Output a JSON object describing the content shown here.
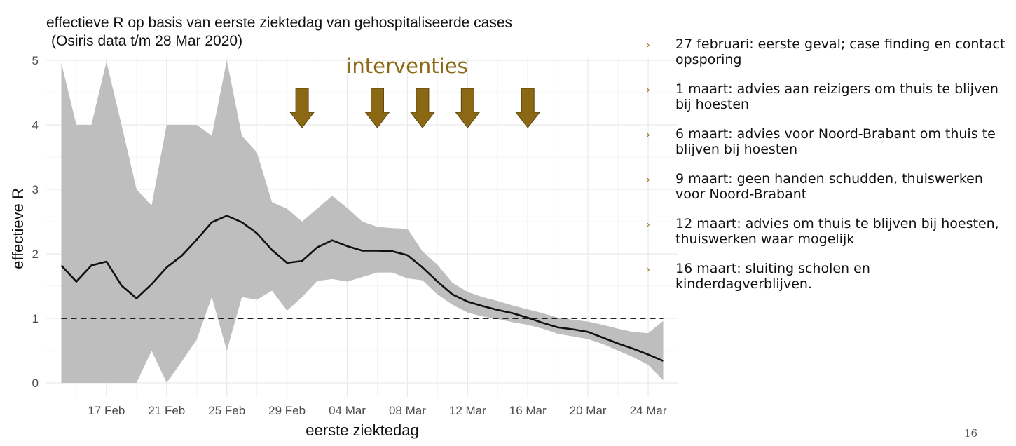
{
  "colors": {
    "band": "#bebebe",
    "line": "#111111",
    "reference": "#222222",
    "arrow": "#8b6914",
    "interventions_text": "#8b6914",
    "grid": "#ebebeb",
    "bullet_marker": "#9a7a16"
  },
  "chart_data": {
    "type": "area",
    "title": "effectieve R op basis van eerste ziektedag van gehospitaliseerde cases",
    "subtitle": "(Osiris data t/m 28 Mar 2020)",
    "xlabel": "eerste ziektedag",
    "ylabel": "effectieve R",
    "xlim": [
      "2020-02-13",
      "2020-03-26"
    ],
    "ylim": [
      0,
      5
    ],
    "x_ticks": [
      {
        "date": "2020-02-17",
        "label": "17 Feb"
      },
      {
        "date": "2020-02-21",
        "label": "21 Feb"
      },
      {
        "date": "2020-02-25",
        "label": "25 Feb"
      },
      {
        "date": "2020-02-29",
        "label": "29 Feb"
      },
      {
        "date": "2020-03-04",
        "label": "04 Mar"
      },
      {
        "date": "2020-03-08",
        "label": "08 Mar"
      },
      {
        "date": "2020-03-12",
        "label": "12 Mar"
      },
      {
        "date": "2020-03-16",
        "label": "16 Mar"
      },
      {
        "date": "2020-03-20",
        "label": "20 Mar"
      },
      {
        "date": "2020-03-24",
        "label": "24 Mar"
      }
    ],
    "y_ticks": [
      0,
      1,
      2,
      3,
      4,
      5
    ],
    "grid": true,
    "x": [
      "2020-02-14",
      "2020-02-15",
      "2020-02-16",
      "2020-02-17",
      "2020-02-18",
      "2020-02-19",
      "2020-02-20",
      "2020-02-21",
      "2020-02-22",
      "2020-02-23",
      "2020-02-24",
      "2020-02-25",
      "2020-02-26",
      "2020-02-27",
      "2020-02-28",
      "2020-02-29",
      "2020-03-01",
      "2020-03-02",
      "2020-03-03",
      "2020-03-04",
      "2020-03-05",
      "2020-03-06",
      "2020-03-07",
      "2020-03-08",
      "2020-03-09",
      "2020-03-10",
      "2020-03-11",
      "2020-03-12",
      "2020-03-13",
      "2020-03-14",
      "2020-03-15",
      "2020-03-16",
      "2020-03-17",
      "2020-03-18",
      "2020-03-19",
      "2020-03-20",
      "2020-03-21",
      "2020-03-22",
      "2020-03-23",
      "2020-03-24",
      "2020-03-25"
    ],
    "series": [
      {
        "values": [
          1.82,
          1.57,
          1.82,
          1.88,
          1.51,
          1.31,
          1.53,
          1.79,
          1.97,
          2.22,
          2.49,
          2.59,
          2.49,
          2.32,
          2.06,
          1.86,
          1.89,
          2.1,
          2.21,
          2.12,
          2.05,
          2.05,
          2.04,
          1.98,
          1.79,
          1.57,
          1.37,
          1.26,
          1.19,
          1.13,
          1.08,
          1.01,
          0.93,
          0.86,
          0.83,
          0.79,
          0.7,
          0.61,
          0.53,
          0.44,
          0.34
        ]
      }
    ],
    "band": {
      "upper": [
        4.96,
        4.0,
        4.0,
        4.98,
        4.0,
        3.0,
        2.75,
        4.0,
        4.0,
        4.0,
        3.83,
        5.0,
        3.83,
        3.57,
        2.8,
        2.7,
        2.5,
        2.7,
        2.9,
        2.71,
        2.5,
        2.42,
        2.4,
        2.39,
        2.04,
        1.83,
        1.55,
        1.41,
        1.33,
        1.27,
        1.2,
        1.14,
        1.08,
        1.01,
        0.98,
        0.95,
        0.9,
        0.84,
        0.79,
        0.77,
        0.96
      ],
      "lower": [
        0.0,
        0.0,
        0.0,
        0.0,
        0.0,
        0.0,
        0.5,
        0.0,
        0.33,
        0.67,
        1.33,
        0.5,
        1.33,
        1.29,
        1.43,
        1.12,
        1.33,
        1.58,
        1.61,
        1.57,
        1.64,
        1.71,
        1.71,
        1.62,
        1.59,
        1.37,
        1.21,
        1.09,
        1.03,
        0.99,
        0.94,
        0.9,
        0.84,
        0.76,
        0.72,
        0.68,
        0.6,
        0.5,
        0.4,
        0.28,
        0.04
      ]
    },
    "reference_line": 1,
    "annotation": {
      "text": "interventies",
      "arrow_dates": [
        "2020-03-01",
        "2020-03-06",
        "2020-03-09",
        "2020-03-12",
        "2020-03-16"
      ]
    }
  },
  "bullets": [
    {
      "marker": "›",
      "text": "27 februari: eerste geval; case finding en contact opsporing"
    },
    {
      "marker": "›",
      "text": "1 maart: advies aan reizigers om thuis te blijven bij hoesten"
    },
    {
      "marker": "›",
      "text": "6 maart: advies voor Noord-Brabant om thuis te blijven bij hoesten"
    },
    {
      "marker": "›",
      "text": "9 maart: geen handen schudden, thuiswerken voor Noord-Brabant"
    },
    {
      "marker": "›",
      "text": "12 maart: advies om thuis te blijven bij hoesten, thuiswerken waar mogelijk"
    },
    {
      "marker": "›",
      "text": "16 maart: sluiting scholen en kinderdagverblijven."
    }
  ],
  "page_number": "16"
}
